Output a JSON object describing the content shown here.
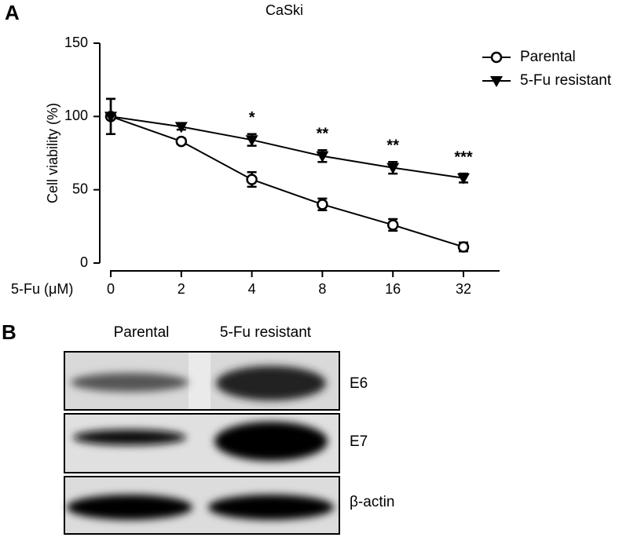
{
  "panel_labels": [
    "A",
    "B"
  ],
  "chart_data": {
    "type": "line",
    "title": "CaSki",
    "y_label": "Cell viability (%)",
    "x_label": "5-Fu (μM)",
    "categories": [
      "0",
      "2",
      "4",
      "8",
      "16",
      "32"
    ],
    "series": [
      {
        "name": "Parental",
        "marker": "circle",
        "color": "#000000",
        "values": [
          100,
          83,
          57,
          40,
          26,
          11
        ],
        "errors": [
          12,
          2,
          5,
          4,
          4,
          3
        ]
      },
      {
        "name": "5-Fu resistant",
        "marker": "triangle",
        "color": "#000000",
        "values": [
          100,
          93,
          84,
          73,
          65,
          58
        ],
        "errors": [
          12,
          2,
          4,
          4,
          4,
          3
        ]
      }
    ],
    "significance": [
      null,
      null,
      "*",
      "**",
      "**",
      "***"
    ],
    "ylim": [
      0,
      150
    ],
    "yticks": [
      0,
      50,
      100,
      150
    ],
    "grid": false,
    "legend": "top-right"
  },
  "blot": {
    "columns": [
      "Parental",
      "5-Fu resistant"
    ],
    "rows": [
      "E6",
      "E7",
      "β-actin"
    ]
  }
}
